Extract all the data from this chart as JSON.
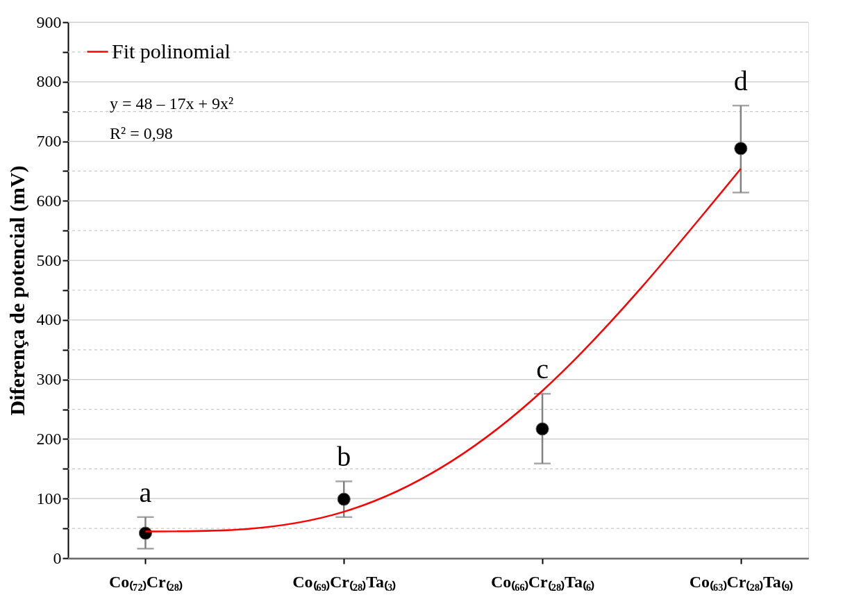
{
  "chart_data": {
    "type": "scatter",
    "ylabel": "Diferença de potencial (mV)",
    "categories": [
      "Co₍₇₂₎Cr₍₂₈₎",
      "Co₍₆₉₎Cr₍₂₈₎Ta₍₃₎",
      "Co₍₆₆₎Cr₍₂₈₎Ta₍₆₎",
      "Co₍₆₃₎Cr₍₂₈₎Ta₍₉₎"
    ],
    "ylim": [
      0,
      900
    ],
    "yticks": [
      0,
      {
        "value": 50,
        "label": null
      },
      100,
      {
        "value": 150,
        "label": null
      },
      200,
      {
        "value": 250,
        "label": null
      },
      300,
      {
        "value": 350,
        "label": null
      },
      400,
      {
        "value": 450,
        "label": null
      },
      500,
      {
        "value": 550,
        "label": null
      },
      600,
      {
        "value": 650,
        "label": null
      },
      700,
      {
        "value": 750,
        "label": null
      },
      800,
      {
        "value": 850,
        "label": null
      },
      900
    ],
    "grid": "y",
    "legend": "top left",
    "marker": "circle",
    "series": [
      {
        "color": "#000000",
        "values": [
          42,
          99,
          217,
          688
        ],
        "errors": [
          [
            16,
            69
          ],
          [
            69,
            129
          ],
          [
            159,
            276
          ],
          [
            614,
            760
          ]
        ]
      },
      {
        "type": "line",
        "name": "Fit polinomial",
        "color": "#ff0000",
        "line_style": "solid",
        "marker": "none",
        "values": [
          45,
          78,
          281,
          654
        ]
      }
    ],
    "annotations": [
      "a",
      "b",
      "c",
      "d",
      "y = 48 – 17x + 9x²",
      "R² = 0,98"
    ]
  }
}
